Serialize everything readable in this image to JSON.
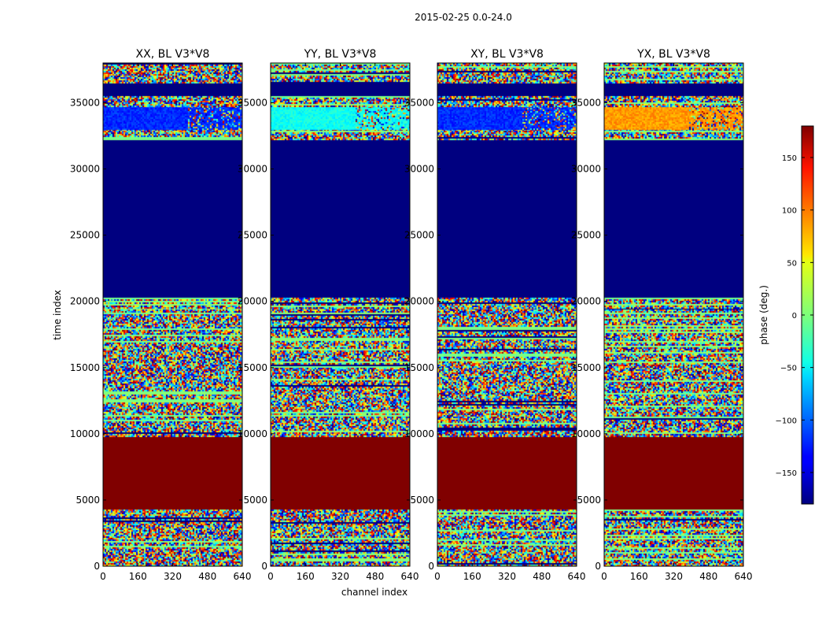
{
  "suptitle": "2015-02-25 0.0-24.0",
  "chart_data": {
    "type": "heatmap",
    "xlabel": "channel index",
    "ylabel": "time index",
    "x_ticks": [
      0,
      160,
      320,
      480,
      640
    ],
    "y_ticks": [
      0,
      5000,
      10000,
      15000,
      20000,
      25000,
      30000,
      35000
    ],
    "xlim": [
      0,
      640
    ],
    "ylim": [
      0,
      38000
    ],
    "colormap": "jet",
    "colorbar": {
      "label": "phase (deg.)",
      "range": [
        -180,
        180
      ],
      "ticks": [
        -150,
        -100,
        -50,
        0,
        50,
        100,
        150
      ],
      "tick_labels": [
        "−150",
        "−100",
        "−50",
        "0",
        "50",
        "100",
        "150"
      ]
    },
    "panels": [
      {
        "title": "XX, BL V3*V8",
        "bands": [
          {
            "from": 0,
            "to": 4300,
            "kind": "noise"
          },
          {
            "from": 4300,
            "to": 9800,
            "kind": "constant",
            "phase": 180
          },
          {
            "from": 9800,
            "to": 19500,
            "kind": "noise"
          },
          {
            "from": 19500,
            "to": 20300,
            "kind": "noise"
          },
          {
            "from": 20300,
            "to": 32200,
            "kind": "constant",
            "phase": -180
          },
          {
            "from": 32200,
            "to": 33000,
            "kind": "noise"
          },
          {
            "from": 33000,
            "to": 34700,
            "kind": "band",
            "phase": -120
          },
          {
            "from": 34700,
            "to": 35500,
            "kind": "noise"
          },
          {
            "from": 35500,
            "to": 36500,
            "kind": "constant",
            "phase": -180
          },
          {
            "from": 36500,
            "to": 38000,
            "kind": "noise"
          }
        ]
      },
      {
        "title": "YY, BL V3*V8",
        "bands": [
          {
            "from": 0,
            "to": 4300,
            "kind": "noise"
          },
          {
            "from": 4300,
            "to": 9800,
            "kind": "constant",
            "phase": 180
          },
          {
            "from": 9800,
            "to": 19500,
            "kind": "noise"
          },
          {
            "from": 19500,
            "to": 20300,
            "kind": "noise"
          },
          {
            "from": 20300,
            "to": 32200,
            "kind": "constant",
            "phase": -180
          },
          {
            "from": 32200,
            "to": 33000,
            "kind": "noise"
          },
          {
            "from": 33000,
            "to": 34700,
            "kind": "band",
            "phase": -40
          },
          {
            "from": 34700,
            "to": 35500,
            "kind": "noise"
          },
          {
            "from": 35500,
            "to": 36500,
            "kind": "constant",
            "phase": -180
          },
          {
            "from": 36500,
            "to": 38000,
            "kind": "noise"
          }
        ]
      },
      {
        "title": "XY, BL V3*V8",
        "bands": [
          {
            "from": 0,
            "to": 4300,
            "kind": "noise"
          },
          {
            "from": 4300,
            "to": 9800,
            "kind": "constant",
            "phase": 180
          },
          {
            "from": 9800,
            "to": 19500,
            "kind": "noise"
          },
          {
            "from": 19500,
            "to": 20300,
            "kind": "noise"
          },
          {
            "from": 20300,
            "to": 32200,
            "kind": "constant",
            "phase": -180
          },
          {
            "from": 32200,
            "to": 33000,
            "kind": "noise"
          },
          {
            "from": 33000,
            "to": 34700,
            "kind": "band",
            "phase": -120
          },
          {
            "from": 34700,
            "to": 35500,
            "kind": "noise"
          },
          {
            "from": 35500,
            "to": 36500,
            "kind": "constant",
            "phase": -180
          },
          {
            "from": 36500,
            "to": 38000,
            "kind": "noise"
          }
        ]
      },
      {
        "title": "YX, BL V3*V8",
        "bands": [
          {
            "from": 0,
            "to": 4300,
            "kind": "noise"
          },
          {
            "from": 4300,
            "to": 9800,
            "kind": "constant",
            "phase": 180
          },
          {
            "from": 9800,
            "to": 19500,
            "kind": "noise"
          },
          {
            "from": 19500,
            "to": 20300,
            "kind": "noise"
          },
          {
            "from": 20300,
            "to": 32200,
            "kind": "constant",
            "phase": -180
          },
          {
            "from": 32200,
            "to": 33000,
            "kind": "noise"
          },
          {
            "from": 33000,
            "to": 34700,
            "kind": "band",
            "phase": 80
          },
          {
            "from": 34700,
            "to": 35500,
            "kind": "noise"
          },
          {
            "from": 35500,
            "to": 36500,
            "kind": "constant",
            "phase": -180
          },
          {
            "from": 36500,
            "to": 38000,
            "kind": "noise"
          }
        ]
      }
    ]
  }
}
